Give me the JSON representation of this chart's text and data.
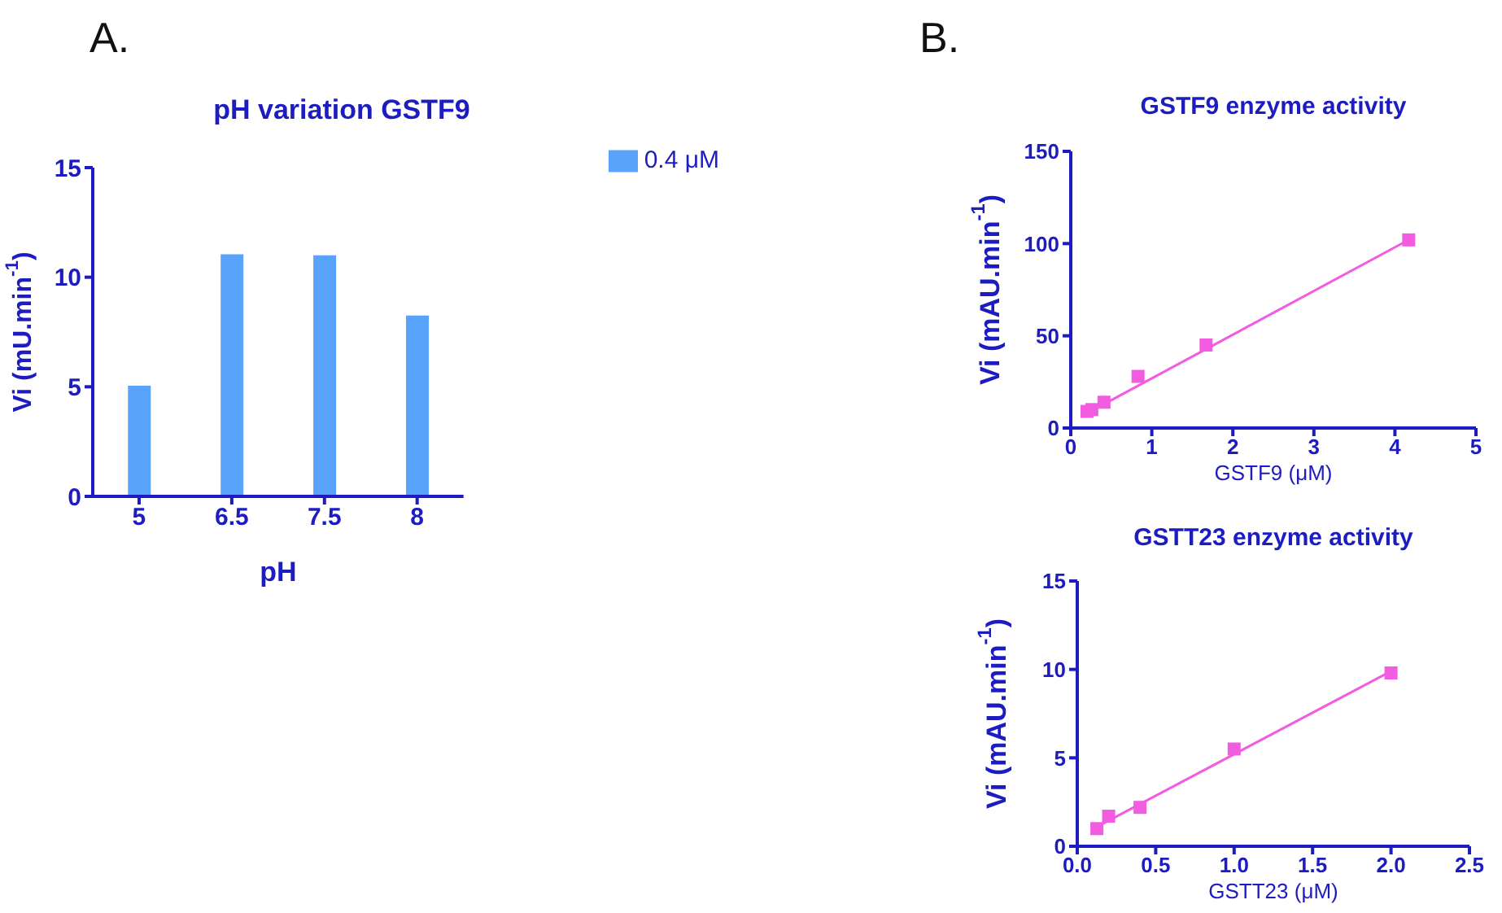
{
  "chart_data": [
    {
      "type": "bar",
      "title": "pH variation GSTF9",
      "xlabel": "pH",
      "ylabel": "Vi (mU.min$^{-1}$)",
      "annotations": [
        "A."
      ],
      "categories": [
        "5",
        "6.5",
        "7.5",
        "8"
      ],
      "series": [
        {
          "name": "0.4 μM",
          "color": "#5aa3fa",
          "values": [
            5.05,
            11.05,
            11.0,
            8.25
          ]
        }
      ],
      "ylim": [
        0,
        15
      ],
      "yticks": [
        0,
        5,
        10,
        15
      ],
      "legend": "top right"
    },
    {
      "type": "scatter",
      "title": "GSTF9 enzyme activity",
      "xlabel": "GSTF9 (μM)",
      "ylabel": "Vi (mAU.min$^{-1}$)",
      "annotations": [
        "B."
      ],
      "series": [
        {
          "type": "scatter",
          "marker": "square",
          "color": "#f25ce0",
          "x": [
            0.2,
            0.26,
            0.41,
            0.83,
            1.67,
            4.17
          ],
          "values": [
            9,
            10,
            14,
            28,
            45,
            102
          ]
        },
        {
          "type": "line",
          "color": "#f25ce0",
          "x": [
            0.2,
            4.17
          ],
          "values": [
            8,
            102
          ]
        }
      ],
      "xlim": [
        0,
        5
      ],
      "xticks": [
        0,
        1,
        2,
        3,
        4,
        5
      ],
      "ylim": [
        0,
        150
      ],
      "yticks": [
        0,
        50,
        100,
        150
      ]
    },
    {
      "type": "scatter",
      "title": "GSTT23 enzyme activity",
      "xlabel": "GSTT23 (μM)",
      "ylabel": "Vi (mAU.min$^{-1}$)",
      "series": [
        {
          "type": "scatter",
          "marker": "square",
          "color": "#f25ce0",
          "x": [
            0.125,
            0.2,
            0.4,
            1.0,
            2.0
          ],
          "values": [
            1.0,
            1.7,
            2.2,
            5.5,
            9.8
          ]
        },
        {
          "type": "line",
          "color": "#f25ce0",
          "x": [
            0.125,
            2.0
          ],
          "values": [
            1.1,
            9.9
          ]
        }
      ],
      "xlim": [
        0,
        2.5
      ],
      "xticks": [
        {
          "value": 0,
          "label": "0.0"
        },
        {
          "value": 0.5,
          "label": "0.5"
        },
        {
          "value": 1,
          "label": "1.0"
        },
        {
          "value": 1.5,
          "label": "1.5"
        },
        {
          "value": 2,
          "label": "2.0"
        },
        {
          "value": 2.5,
          "label": "2.5"
        }
      ],
      "ylim": [
        0,
        15
      ],
      "yticks": [
        0,
        5,
        10,
        15
      ]
    }
  ]
}
